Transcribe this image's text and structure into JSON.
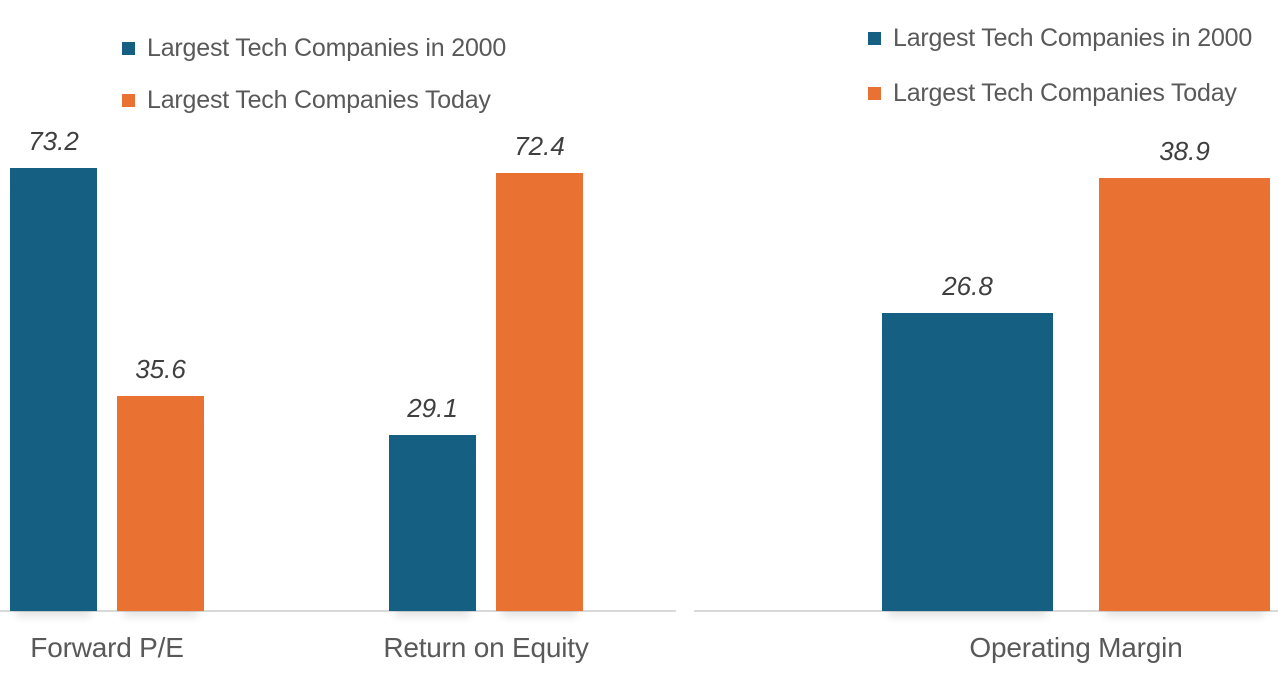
{
  "page": {
    "background": "#FFFFFF"
  },
  "colors": {
    "series_2000": "#156082",
    "series_today": "#E97132",
    "axis_line": "#D9D9D9",
    "category_text": "#595959",
    "legend_text": "#595959",
    "value_text": "#3F3F3F"
  },
  "chart_data": [
    {
      "type": "bar",
      "title": "",
      "categories": [
        "Forward P/E",
        "Return on Equity"
      ],
      "series": [
        {
          "name": "Largest Tech Companies in 2000",
          "color": "#156082",
          "values": [
            73.2,
            29.1
          ]
        },
        {
          "name": "Largest Tech Companies Today",
          "color": "#E97132",
          "values": [
            35.6,
            72.4
          ]
        }
      ],
      "data_labels": [
        [
          "73.2",
          "29.1"
        ],
        [
          "35.6",
          "72.4"
        ]
      ],
      "legend_position": "top",
      "grid": false,
      "y_axis_visible": false,
      "ylim": [
        0,
        80
      ]
    },
    {
      "type": "bar",
      "title": "",
      "categories": [
        "Operating Margin"
      ],
      "series": [
        {
          "name": "Largest Tech Companies in 2000",
          "color": "#156082",
          "values": [
            26.8
          ]
        },
        {
          "name": "Largest Tech Companies Today",
          "color": "#E97132",
          "values": [
            38.9
          ]
        }
      ],
      "data_labels": [
        [
          "26.8"
        ],
        [
          "38.9"
        ]
      ],
      "legend_position": "top",
      "grid": false,
      "y_axis_visible": false,
      "ylim": [
        0,
        45
      ]
    }
  ]
}
